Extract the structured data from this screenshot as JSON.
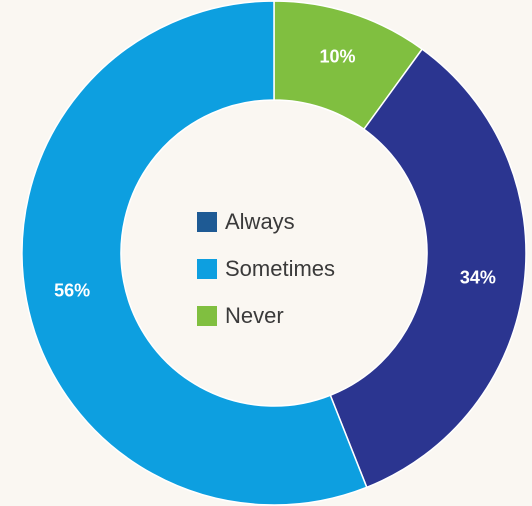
{
  "chart_data": {
    "type": "pie",
    "style": "donut",
    "title": "",
    "categories": [
      "Always",
      "Sometimes",
      "Never"
    ],
    "values": [
      34,
      56,
      10
    ],
    "value_labels": [
      "34%",
      "56%",
      "10%"
    ],
    "colors": [
      "#2b3590",
      "#0d9fe0",
      "#80bf40"
    ],
    "legend": {
      "placement": "center",
      "swatch_colors": [
        "#1e5a94",
        "#0d9fe0",
        "#80bf40"
      ]
    }
  }
}
